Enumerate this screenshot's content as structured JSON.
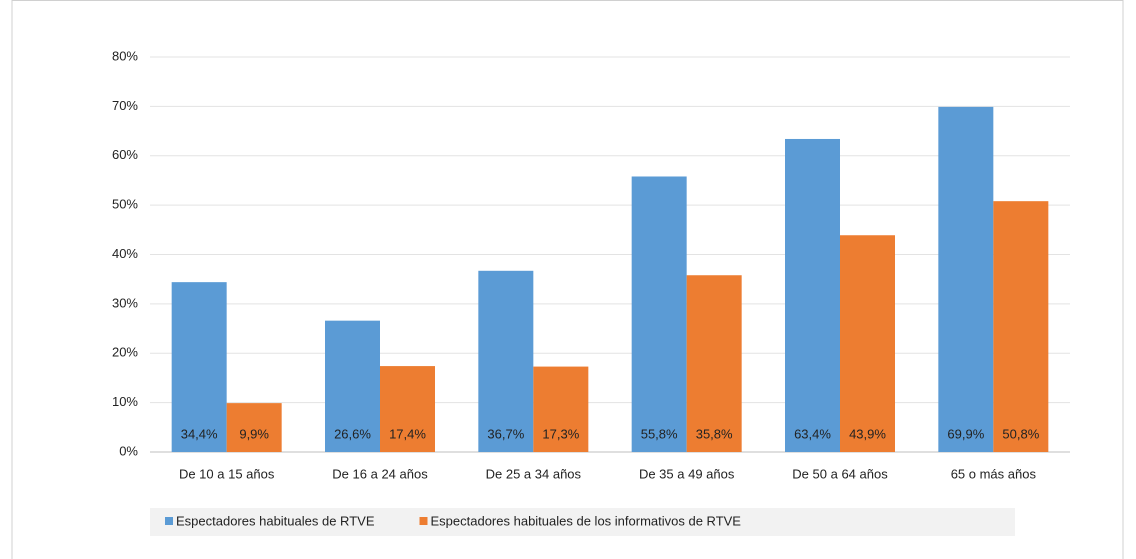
{
  "chart_data": {
    "type": "bar",
    "categories": [
      "De 10 a 15 años",
      "De 16 a 24 años",
      "De 25 a 34 años",
      "De 35 a 49 años",
      "De 50 a 64 años",
      "65 o más años"
    ],
    "series": [
      {
        "name": "Espectadores habituales de RTVE",
        "color": "#5b9bd5",
        "values": [
          34.4,
          26.6,
          36.7,
          55.8,
          63.4,
          69.9
        ],
        "value_labels": [
          "34,4%",
          "26,6%",
          "36,7%",
          "55,8%",
          "63,4%",
          "69,9%"
        ]
      },
      {
        "name": "Espectadores habituales de los informativos de RTVE",
        "color": "#ed7d31",
        "values": [
          9.9,
          17.4,
          17.3,
          35.8,
          43.9,
          50.8
        ],
        "value_labels": [
          "9,9%",
          "17,4%",
          "17,3%",
          "35,8%",
          "43,9%",
          "50,8%"
        ]
      }
    ],
    "ylim": [
      0,
      80
    ],
    "yticks": [
      {
        "value": 0,
        "label": "0%"
      },
      {
        "value": 10,
        "label": "10%"
      },
      {
        "value": 20,
        "label": "20%"
      },
      {
        "value": 30,
        "label": "30%"
      },
      {
        "value": 40,
        "label": "40%"
      },
      {
        "value": 50,
        "label": "50%"
      },
      {
        "value": 60,
        "label": "60%"
      },
      {
        "value": 70,
        "label": "70%"
      },
      {
        "value": 80,
        "label": "80%"
      }
    ],
    "grid": true,
    "legend": "bottom"
  }
}
